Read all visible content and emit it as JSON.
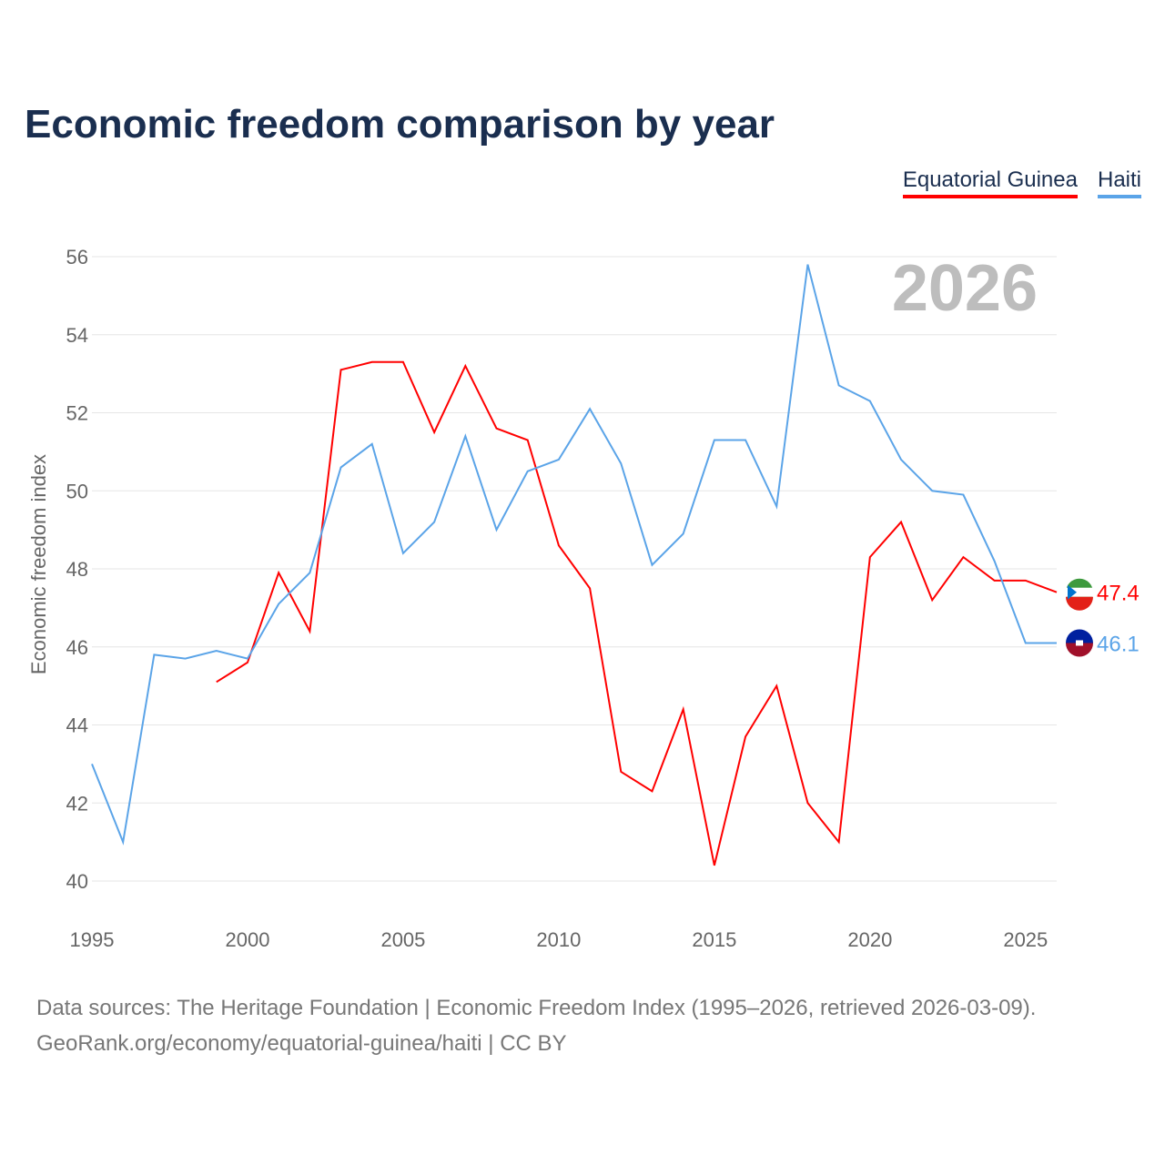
{
  "chart_data": {
    "type": "line",
    "title": "Economic freedom comparison by year",
    "xlabel": "",
    "ylabel": "Economic freedom index",
    "xlim": [
      1995,
      2026
    ],
    "ylim": [
      40,
      56
    ],
    "x_ticks": [
      1995,
      2000,
      2005,
      2010,
      2015,
      2020,
      2025
    ],
    "y_ticks": [
      40,
      42,
      44,
      46,
      48,
      50,
      52,
      54,
      56
    ],
    "year_watermark": "2026",
    "legend_position": "top-right",
    "series": [
      {
        "name": "Equatorial Guinea",
        "color": "#ff0000",
        "end_label": "47.4",
        "x": [
          1999,
          2000,
          2001,
          2002,
          2003,
          2004,
          2005,
          2006,
          2007,
          2008,
          2009,
          2010,
          2011,
          2012,
          2013,
          2014,
          2015,
          2016,
          2017,
          2018,
          2019,
          2020,
          2021,
          2022,
          2023,
          2024,
          2025,
          2026
        ],
        "values": [
          45.1,
          45.6,
          47.9,
          46.4,
          53.1,
          53.3,
          53.3,
          51.5,
          53.2,
          51.6,
          51.3,
          48.6,
          47.5,
          42.8,
          42.3,
          44.4,
          40.4,
          43.7,
          45.0,
          42.0,
          41.0,
          48.3,
          49.2,
          47.2,
          48.3,
          47.7,
          47.7,
          47.4
        ]
      },
      {
        "name": "Haiti",
        "color": "#5ba4e8",
        "end_label": "46.1",
        "x": [
          1995,
          1996,
          1997,
          1998,
          1999,
          2000,
          2001,
          2002,
          2003,
          2004,
          2005,
          2006,
          2007,
          2008,
          2009,
          2010,
          2011,
          2012,
          2013,
          2014,
          2015,
          2016,
          2017,
          2018,
          2019,
          2020,
          2021,
          2022,
          2023,
          2024,
          2025,
          2026
        ],
        "values": [
          43.0,
          41.0,
          45.8,
          45.7,
          45.9,
          45.7,
          47.1,
          47.9,
          50.6,
          51.2,
          48.4,
          49.2,
          51.4,
          49.0,
          50.5,
          50.8,
          52.1,
          50.7,
          48.1,
          48.9,
          51.3,
          51.3,
          49.6,
          55.8,
          52.7,
          52.3,
          50.8,
          50.0,
          49.9,
          48.2,
          46.1,
          46.1
        ]
      }
    ]
  },
  "footer": {
    "line1": "Data sources: The Heritage Foundation | Economic Freedom Index (1995–2026, retrieved 2026-03-09).",
    "line2": "GeoRank.org/economy/equatorial-guinea/haiti | CC BY"
  }
}
